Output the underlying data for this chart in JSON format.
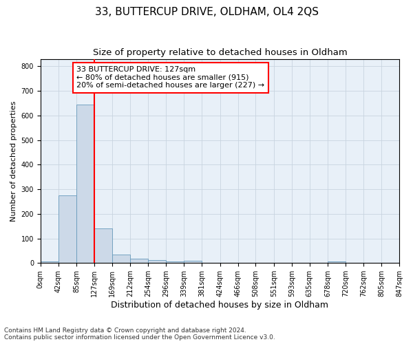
{
  "title": "33, BUTTERCUP DRIVE, OLDHAM, OL4 2QS",
  "subtitle": "Size of property relative to detached houses in Oldham",
  "xlabel": "Distribution of detached houses by size in Oldham",
  "ylabel": "Number of detached properties",
  "footnote": "Contains HM Land Registry data © Crown copyright and database right 2024.\nContains public sector information licensed under the Open Government Licence v3.0.",
  "bin_labels": [
    "0sqm",
    "42sqm",
    "85sqm",
    "127sqm",
    "169sqm",
    "212sqm",
    "254sqm",
    "296sqm",
    "339sqm",
    "381sqm",
    "424sqm",
    "466sqm",
    "508sqm",
    "551sqm",
    "593sqm",
    "635sqm",
    "678sqm",
    "720sqm",
    "762sqm",
    "805sqm",
    "847sqm"
  ],
  "bar_values": [
    7,
    275,
    643,
    140,
    34,
    17,
    11,
    6,
    9,
    0,
    0,
    0,
    0,
    0,
    0,
    0,
    7,
    0,
    0,
    0
  ],
  "bar_color": "#ccd9e8",
  "bar_edge_color": "#6699bb",
  "property_line_x": 127,
  "property_line_color": "red",
  "annotation_text": "33 BUTTERCUP DRIVE: 127sqm\n← 80% of detached houses are smaller (915)\n20% of semi-detached houses are larger (227) →",
  "annotation_box_color": "white",
  "annotation_box_edge": "red",
  "ylim": [
    0,
    830
  ],
  "yticks": [
    0,
    100,
    200,
    300,
    400,
    500,
    600,
    700,
    800
  ],
  "background_color": "#ffffff",
  "plot_bg_color": "#e8f0f8",
  "grid_color": "#c8d4e0",
  "title_fontsize": 11,
  "subtitle_fontsize": 9.5,
  "xlabel_fontsize": 9,
  "ylabel_fontsize": 8,
  "tick_fontsize": 7,
  "annotation_fontsize": 8,
  "footnote_fontsize": 6.5
}
